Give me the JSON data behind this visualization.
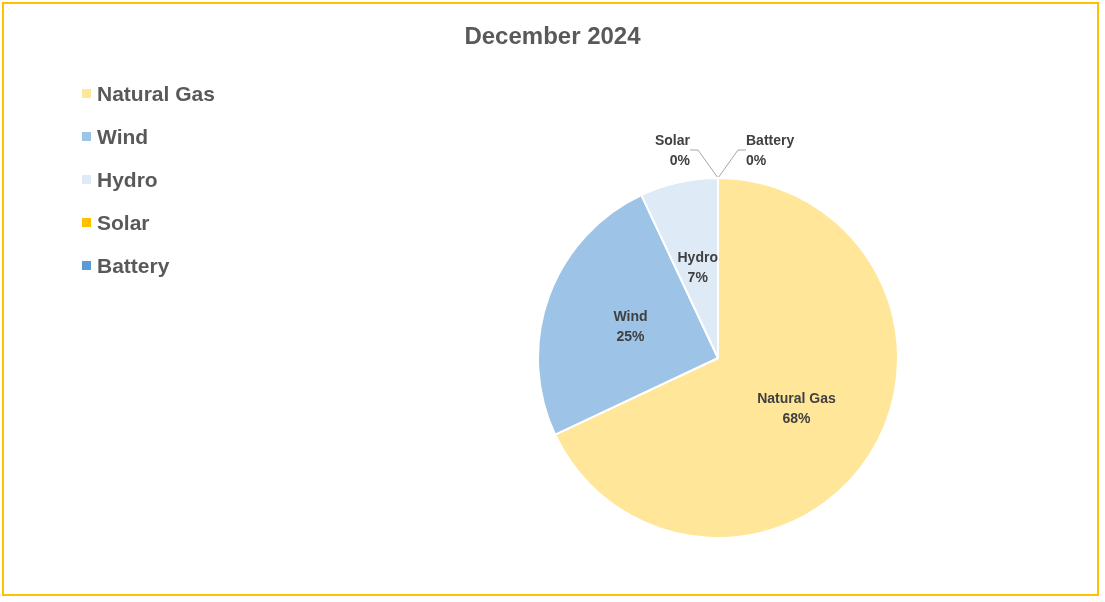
{
  "chart_data": {
    "type": "pie",
    "title": "December 2024",
    "categories": [
      "Natural Gas",
      "Wind",
      "Hydro",
      "Solar",
      "Battery"
    ],
    "values": [
      68,
      25,
      7,
      0,
      0
    ],
    "colors": [
      "#ffe699",
      "#9dc3e6",
      "#deebf7",
      "#ffc000",
      "#5b9bd5"
    ],
    "value_labels": [
      "68%",
      "25%",
      "7%",
      "0%",
      "0%"
    ],
    "legend": "top left"
  }
}
